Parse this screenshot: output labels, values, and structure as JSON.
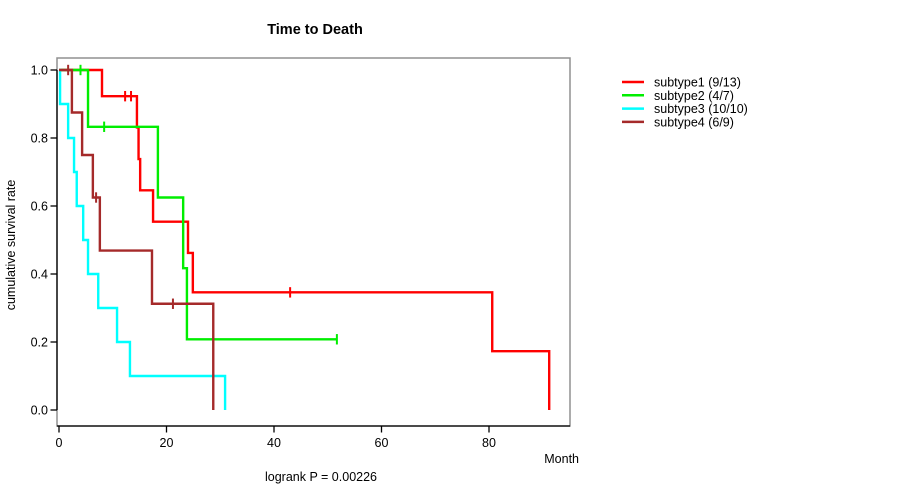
{
  "page": {
    "title": "Time to Death",
    "xlabel": "Month",
    "ylabel": "cumulative survival rate",
    "footnote": "logrank P = 0.00226"
  },
  "chart_data": {
    "type": "line",
    "variant": "kaplan-meier-step-curves",
    "title": "Time to Death",
    "xlabel": "Month",
    "ylabel": "cumulative survival rate",
    "annotation": "logrank P = 0.00226",
    "xlim": [
      0,
      95
    ],
    "ylim": [
      0.0,
      1.0
    ],
    "grid": false,
    "legend_position": "right",
    "xticks": [
      {
        "v": 0,
        "label": "0"
      },
      {
        "v": 20,
        "label": "20"
      },
      {
        "v": 40,
        "label": "40"
      },
      {
        "v": 60,
        "label": "60"
      },
      {
        "v": 80,
        "label": "80"
      }
    ],
    "yticks": [
      {
        "v": 0.0,
        "label": "0.0"
      },
      {
        "v": 0.2,
        "label": "0.2"
      },
      {
        "v": 0.4,
        "label": "0.4"
      },
      {
        "v": 0.6,
        "label": "0.6"
      },
      {
        "v": 0.8,
        "label": "0.8"
      },
      {
        "v": 1.0,
        "label": "1.0"
      }
    ],
    "series": [
      {
        "name": "subtype1",
        "label": "subtype1 (9/13)",
        "events": "9/13",
        "color": "#FF0000",
        "steps": [
          [
            0,
            1.0
          ],
          [
            8.0,
            0.923
          ],
          [
            14.5,
            0.831
          ],
          [
            14.8,
            0.738
          ],
          [
            15.1,
            0.646
          ],
          [
            17.5,
            0.554
          ],
          [
            24.0,
            0.462
          ],
          [
            24.9,
            0.346
          ],
          [
            80.6,
            0.173
          ],
          [
            91.2,
            0.0
          ]
        ],
        "censors": [
          [
            12.3,
            0.923
          ],
          [
            13.4,
            0.923
          ],
          [
            43.0,
            0.346
          ]
        ],
        "tail": null
      },
      {
        "name": "subtype2",
        "label": "subtype2 (4/7)",
        "events": "4/7",
        "color": "#00EE00",
        "steps": [
          [
            0,
            1.0
          ],
          [
            5.4,
            0.833
          ],
          [
            18.4,
            0.625
          ],
          [
            23.1,
            0.417
          ],
          [
            23.8,
            0.208
          ]
        ],
        "censors": [
          [
            4.0,
            1.0
          ],
          [
            8.4,
            0.833
          ],
          [
            51.7,
            0.208
          ]
        ],
        "tail": 51.7
      },
      {
        "name": "subtype3",
        "label": "subtype3 (10/10)",
        "events": "10/10",
        "color": "#00FFFF",
        "steps": [
          [
            0,
            1.0
          ],
          [
            0.2,
            0.9
          ],
          [
            1.7,
            0.8
          ],
          [
            2.8,
            0.7
          ],
          [
            3.3,
            0.6
          ],
          [
            4.5,
            0.5
          ],
          [
            5.4,
            0.4
          ],
          [
            7.3,
            0.3
          ],
          [
            10.8,
            0.2
          ],
          [
            13.2,
            0.1
          ],
          [
            30.9,
            0.0
          ]
        ],
        "censors": [],
        "tail": null
      },
      {
        "name": "subtype4",
        "label": "subtype4 (6/9)",
        "events": "6/9",
        "color": "#A52A2A",
        "steps": [
          [
            0,
            1.0
          ],
          [
            2.4,
            0.875
          ],
          [
            4.3,
            0.75
          ],
          [
            6.3,
            0.625
          ],
          [
            7.6,
            0.469
          ],
          [
            17.3,
            0.3125
          ],
          [
            28.7,
            0.0
          ]
        ],
        "censors": [
          [
            1.7,
            1.0
          ],
          [
            6.9,
            0.625
          ],
          [
            21.2,
            0.3125
          ]
        ],
        "tail": null
      }
    ]
  }
}
